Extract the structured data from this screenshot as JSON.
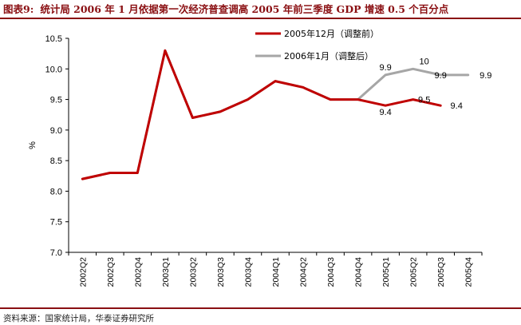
{
  "header": {
    "figure_label": "图表9:",
    "title": "统计局 2006 年 1 月依据第一次经济普查调高 2005 年前三季度 GDP 增速 0.5 个百分点"
  },
  "footer": {
    "source": "资料来源：国家统计局，华泰证券研究所"
  },
  "colors": {
    "accent": "#8a0f12",
    "series_old": "#c00000",
    "series_new": "#a6a6a6"
  },
  "chart_data": {
    "type": "line",
    "ylabel": "%",
    "xlabel": "",
    "ylim": [
      7.0,
      10.5
    ],
    "yticks": [
      "7.0",
      "7.5",
      "8.0",
      "8.5",
      "9.0",
      "9.5",
      "10.0",
      "10.5"
    ],
    "categories": [
      "2002Q2",
      "2002Q3",
      "2002Q4",
      "2003Q1",
      "2003Q2",
      "2003Q3",
      "2003Q4",
      "2004Q1",
      "2004Q2",
      "2004Q3",
      "2004Q4",
      "2005Q1",
      "2005Q2",
      "2005Q3",
      "2005Q4"
    ],
    "legend_position": "top-center",
    "grid": false,
    "series": [
      {
        "name": "2005年12月（调整前）",
        "color": "#c00000",
        "values": [
          8.2,
          8.3,
          8.3,
          10.3,
          9.2,
          9.3,
          9.5,
          9.8,
          9.7,
          9.5,
          9.5,
          9.4,
          9.5,
          9.4,
          null
        ],
        "labels": [
          null,
          null,
          null,
          null,
          null,
          null,
          null,
          null,
          null,
          null,
          null,
          "9.4",
          "9.5",
          "9.4",
          null
        ]
      },
      {
        "name": "2006年1月（调整后）",
        "color": "#a6a6a6",
        "values": [
          8.2,
          8.3,
          8.3,
          10.3,
          9.2,
          9.3,
          9.5,
          9.8,
          9.7,
          9.5,
          9.5,
          9.9,
          10.0,
          9.9,
          9.9
        ],
        "labels": [
          null,
          null,
          null,
          null,
          null,
          null,
          null,
          null,
          null,
          null,
          null,
          "9.9",
          "10",
          "9.9",
          "9.9"
        ]
      }
    ]
  }
}
